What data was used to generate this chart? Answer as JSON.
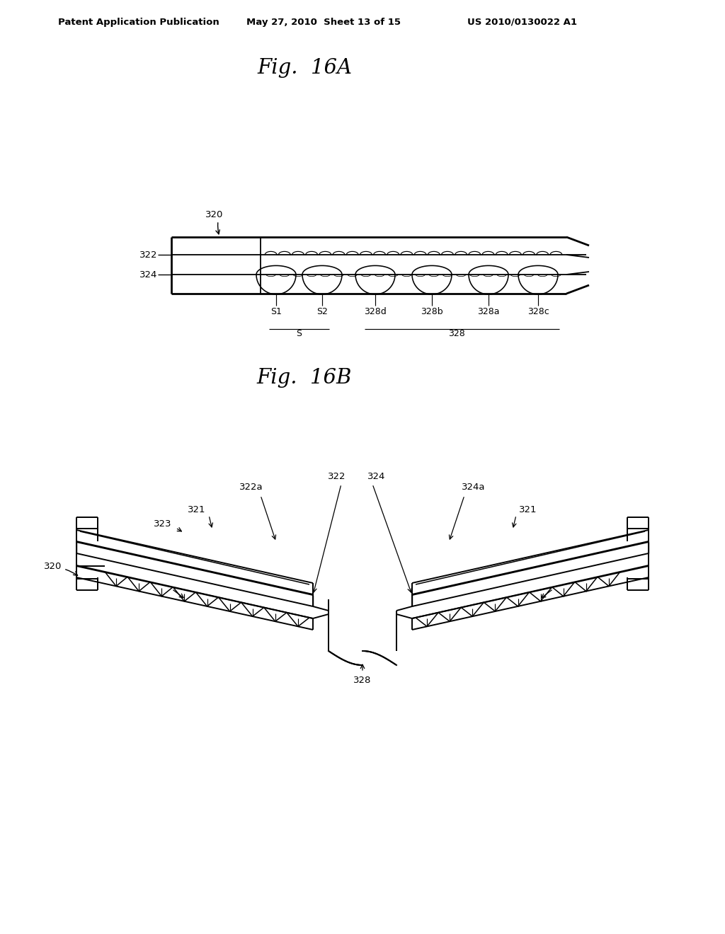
{
  "background_color": "#ffffff",
  "header_left": "Patent Application Publication",
  "header_center": "May 27, 2010  Sheet 13 of 15",
  "header_right": "US 2010/0130022 A1",
  "fig16A_title": "Fig.  16A",
  "fig16B_title": "Fig.  16B",
  "line_color": "#000000",
  "text_color": "#000000"
}
